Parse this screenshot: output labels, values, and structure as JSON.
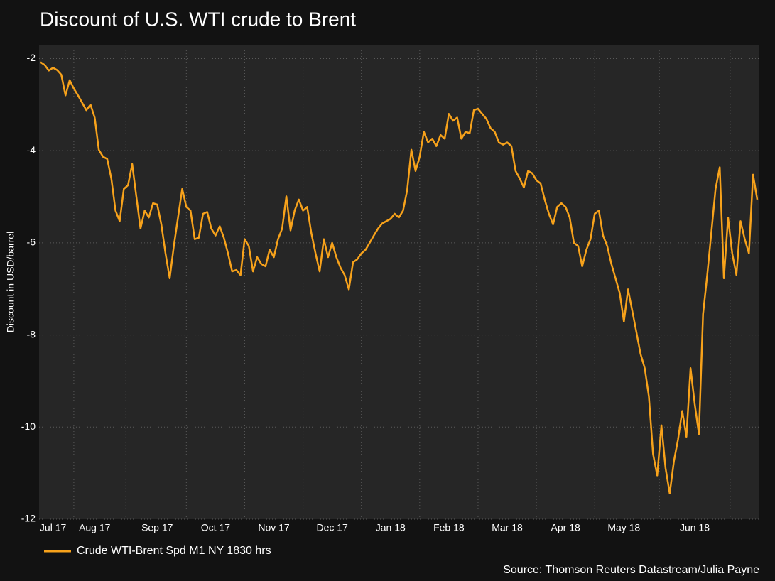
{
  "chart_data": {
    "type": "line",
    "title": "Discount of U.S. WTI crude to Brent",
    "y_label": "Discount in USD/barrel",
    "source": "Source: Thomson Reuters Datastream/Julia Payne",
    "categories": [
      null,
      null,
      null,
      "Jul 17",
      null,
      null,
      null,
      null,
      null,
      null,
      null,
      null,
      null,
      "Aug 17",
      null,
      null,
      null,
      null,
      null,
      null,
      null,
      null,
      null,
      null,
      null,
      null,
      null,
      null,
      "Sep 17",
      null,
      null,
      null,
      null,
      null,
      null,
      null,
      null,
      null,
      null,
      null,
      null,
      null,
      "Oct 17",
      null,
      null,
      null,
      null,
      null,
      null,
      null,
      null,
      null,
      null,
      null,
      null,
      null,
      "Nov 17",
      null,
      null,
      null,
      null,
      null,
      null,
      null,
      null,
      null,
      null,
      null,
      null,
      null,
      "Dec 17",
      null,
      null,
      null,
      null,
      null,
      null,
      null,
      null,
      null,
      null,
      null,
      null,
      null,
      "Jan 18",
      null,
      null,
      null,
      null,
      null,
      null,
      null,
      null,
      null,
      null,
      null,
      null,
      null,
      "Feb 18",
      null,
      null,
      null,
      null,
      null,
      null,
      null,
      null,
      null,
      null,
      null,
      null,
      null,
      "Mar 18",
      null,
      null,
      null,
      null,
      null,
      null,
      null,
      null,
      null,
      null,
      null,
      null,
      null,
      "Apr 18",
      null,
      null,
      null,
      null,
      null,
      null,
      null,
      null,
      null,
      null,
      null,
      null,
      null,
      "May 18",
      null,
      null,
      null,
      null,
      null,
      null,
      null,
      null,
      null,
      null,
      null,
      null,
      null,
      null,
      null,
      null,
      "Jun 18",
      null,
      null,
      null,
      null,
      null,
      null,
      null,
      null,
      null,
      null,
      null,
      null,
      null,
      null,
      null
    ],
    "series": [
      {
        "name": "Crude WTI-Brent Spd M1 NY 1830 hrs",
        "color": "#f7a21b",
        "values": [
          -2.08,
          -2.14,
          -2.26,
          -2.2,
          -2.25,
          -2.35,
          -2.8,
          -2.47,
          -2.65,
          -2.8,
          -2.96,
          -3.12,
          -3.0,
          -3.28,
          -3.98,
          -4.13,
          -4.18,
          -4.6,
          -5.3,
          -5.53,
          -4.83,
          -4.75,
          -4.29,
          -4.99,
          -5.69,
          -5.3,
          -5.45,
          -5.14,
          -5.17,
          -5.6,
          -6.23,
          -6.77,
          -6.07,
          -5.45,
          -4.83,
          -5.22,
          -5.3,
          -5.92,
          -5.89,
          -5.37,
          -5.33,
          -5.69,
          -5.84,
          -5.64,
          -5.89,
          -6.23,
          -6.62,
          -6.59,
          -6.7,
          -5.92,
          -6.07,
          -6.62,
          -6.31,
          -6.46,
          -6.51,
          -6.15,
          -6.31,
          -5.92,
          -5.69,
          -4.99,
          -5.73,
          -5.3,
          -5.06,
          -5.3,
          -5.22,
          -5.79,
          -6.23,
          -6.62,
          -5.92,
          -6.31,
          -6.0,
          -6.31,
          -6.54,
          -6.7,
          -7.01,
          -6.42,
          -6.36,
          -6.23,
          -6.15,
          -6.0,
          -5.84,
          -5.69,
          -5.58,
          -5.53,
          -5.48,
          -5.37,
          -5.45,
          -5.3,
          -4.86,
          -3.98,
          -4.44,
          -4.13,
          -3.59,
          -3.82,
          -3.74,
          -3.9,
          -3.66,
          -3.74,
          -3.2,
          -3.35,
          -3.28,
          -3.74,
          -3.59,
          -3.62,
          -3.12,
          -3.09,
          -3.2,
          -3.31,
          -3.51,
          -3.59,
          -3.82,
          -3.87,
          -3.82,
          -3.9,
          -4.44,
          -4.6,
          -4.8,
          -4.44,
          -4.49,
          -4.64,
          -4.71,
          -5.06,
          -5.37,
          -5.6,
          -5.22,
          -5.14,
          -5.22,
          -5.45,
          -6.0,
          -6.07,
          -6.51,
          -6.15,
          -5.92,
          -5.37,
          -5.3,
          -5.84,
          -6.07,
          -6.46,
          -6.77,
          -7.09,
          -7.71,
          -7.01,
          -7.47,
          -7.94,
          -8.41,
          -8.72,
          -9.34,
          -10.58,
          -11.05,
          -9.96,
          -10.89,
          -11.44,
          -10.74,
          -10.27,
          -9.65,
          -10.21,
          -8.72,
          -9.5,
          -10.15,
          -7.55,
          -6.7,
          -5.76,
          -4.83,
          -4.36,
          -6.77,
          -5.45,
          -6.23,
          -6.7,
          -5.53,
          -5.92,
          -6.23,
          -4.52,
          -5.06
        ]
      }
    ],
    "ylim": [
      -12,
      -1.7
    ],
    "yticks": [
      -12,
      -10,
      -8,
      -6,
      -4,
      -2
    ],
    "grid": true,
    "legend": "bottom-left"
  }
}
